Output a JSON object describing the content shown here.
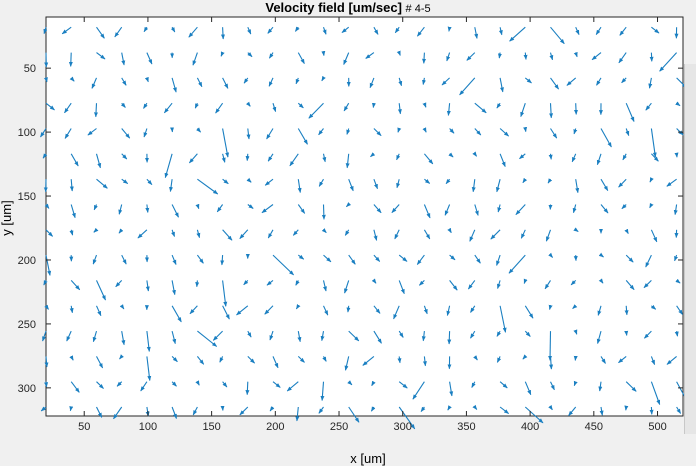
{
  "title": {
    "main": "Velocity field [um/sec]",
    "frames": "# 4-5"
  },
  "colors": {
    "arrow": "#1a7fc1",
    "axes": "#262626",
    "plot_bg": "#ffffff",
    "window_bg": "#f0f0f0"
  },
  "chart_data": {
    "type": "quiver",
    "title": "Velocity field [um/sec] # 4-5",
    "xlabel": "x [um]",
    "ylabel": "y [um]",
    "xlim": [
      20,
      520
    ],
    "ylim": [
      10,
      322
    ],
    "y_reversed": true,
    "grid": false,
    "xticks": [
      50,
      100,
      150,
      200,
      250,
      300,
      350,
      400,
      450,
      500
    ],
    "yticks": [
      50,
      100,
      150,
      200,
      250,
      300
    ],
    "xtick_labels": [
      "50",
      "100",
      "150",
      "200",
      "250",
      "300",
      "350",
      "400",
      "450",
      "500"
    ],
    "ytick_labels": [
      "50",
      "100",
      "150",
      "200",
      "250",
      "300"
    ],
    "grid_x_start": 20,
    "grid_x_step": 19.8,
    "grid_x_count": 26,
    "grid_y_start": 18,
    "grid_y_step": 19.8,
    "grid_y_count": 16
  }
}
